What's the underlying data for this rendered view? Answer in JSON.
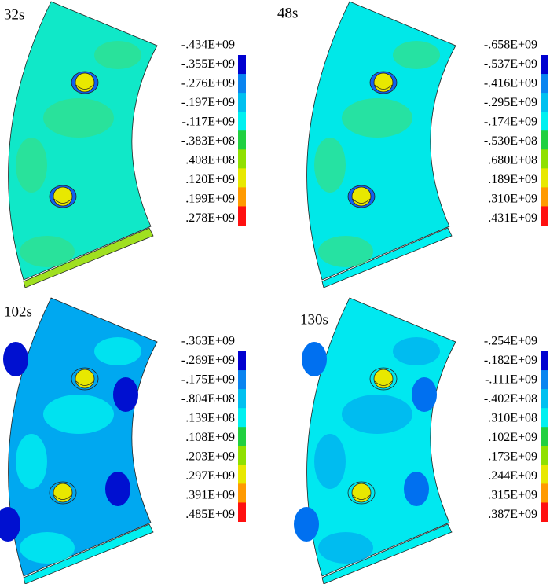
{
  "panels": [
    {
      "label": "32s",
      "legend": [
        "-.434E+09",
        "-.355E+09",
        "-.276E+09",
        "-.197E+09",
        "-.117E+09",
        "-.383E+08",
        ".408E+08",
        ".120E+09",
        ".199E+09",
        ".278E+09"
      ]
    },
    {
      "label": "48s",
      "legend": [
        "-.658E+09",
        "-.537E+09",
        "-.416E+09",
        "-.295E+09",
        "-.174E+09",
        "-.530E+08",
        ".680E+08",
        ".189E+09",
        ".310E+09",
        ".431E+09"
      ]
    },
    {
      "label": "102s",
      "legend": [
        "-.363E+09",
        "-.269E+09",
        "-.175E+09",
        "-.804E+08",
        ".139E+08",
        ".108E+09",
        ".203E+09",
        ".297E+09",
        ".391E+09",
        ".485E+09"
      ]
    },
    {
      "label": "130s",
      "legend": [
        "-.254E+09",
        "-.182E+09",
        "-.111E+09",
        "-.402E+08",
        ".310E+08",
        ".102E+09",
        ".173E+09",
        ".244E+09",
        ".315E+09",
        ".387E+09"
      ]
    }
  ]
}
